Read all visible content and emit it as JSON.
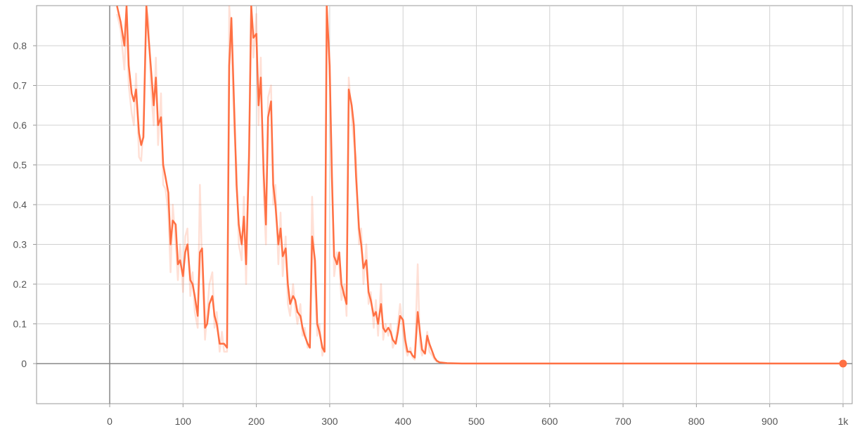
{
  "chart_data": {
    "type": "line",
    "title": "",
    "xlabel": "",
    "ylabel": "",
    "xlim": [
      -100,
      1020
    ],
    "ylim": [
      -0.1,
      0.9
    ],
    "grid": true,
    "x_ticks": [
      {
        "value": 0,
        "label": "0"
      },
      {
        "value": 100,
        "label": "100"
      },
      {
        "value": 200,
        "label": "200"
      },
      {
        "value": 300,
        "label": "300"
      },
      {
        "value": 400,
        "label": "400"
      },
      {
        "value": 500,
        "label": "500"
      },
      {
        "value": 600,
        "label": "600"
      },
      {
        "value": 700,
        "label": "700"
      },
      {
        "value": 800,
        "label": "800"
      },
      {
        "value": 900,
        "label": "900"
      },
      {
        "value": 1000,
        "label": "1k"
      }
    ],
    "y_ticks": [
      {
        "value": 0,
        "label": "0"
      },
      {
        "value": 0.1,
        "label": "0.1"
      },
      {
        "value": 0.2,
        "label": "0.2"
      },
      {
        "value": 0.3,
        "label": "0.3"
      },
      {
        "value": 0.4,
        "label": "0.4"
      },
      {
        "value": 0.5,
        "label": "0.5"
      },
      {
        "value": 0.6,
        "label": "0.6"
      },
      {
        "value": 0.7,
        "label": "0.7"
      },
      {
        "value": 0.8,
        "label": "0.8"
      }
    ],
    "colors": {
      "smoothed": "#ff7043",
      "raw": "#ff7043",
      "grid": "#d0d0d0",
      "axis": "#888888"
    },
    "series": [
      {
        "role": "smoothed",
        "x": [
          10,
          15,
          20,
          23,
          26,
          30,
          33,
          36,
          40,
          43,
          46,
          50,
          53,
          56,
          60,
          63,
          66,
          70,
          73,
          76,
          80,
          83,
          86,
          90,
          93,
          96,
          100,
          103,
          106,
          110,
          113,
          116,
          120,
          123,
          126,
          130,
          133,
          136,
          140,
          143,
          146,
          150,
          153,
          156,
          160,
          163,
          166,
          170,
          173,
          176,
          180,
          183,
          186,
          190,
          193,
          196,
          200,
          203,
          206,
          210,
          213,
          216,
          220,
          223,
          226,
          230,
          233,
          236,
          240,
          243,
          246,
          250,
          253,
          256,
          260,
          263,
          266,
          270,
          273,
          276,
          280,
          283,
          286,
          290,
          293,
          296,
          300,
          303,
          306,
          310,
          313,
          316,
          320,
          323,
          326,
          330,
          333,
          336,
          340,
          343,
          346,
          350,
          353,
          356,
          360,
          363,
          366,
          370,
          373,
          376,
          380,
          383,
          386,
          390,
          393,
          396,
          400,
          403,
          406,
          410,
          413,
          416,
          420,
          423,
          426,
          430,
          433,
          436,
          440,
          443,
          446,
          450,
          460,
          480,
          500,
          520,
          600,
          700,
          800,
          900,
          1000
        ],
        "y": [
          0.9,
          0.86,
          0.8,
          0.9,
          0.75,
          0.68,
          0.66,
          0.69,
          0.58,
          0.55,
          0.57,
          0.9,
          0.82,
          0.75,
          0.65,
          0.72,
          0.6,
          0.62,
          0.5,
          0.47,
          0.43,
          0.3,
          0.36,
          0.35,
          0.25,
          0.26,
          0.22,
          0.28,
          0.3,
          0.21,
          0.2,
          0.17,
          0.12,
          0.28,
          0.29,
          0.09,
          0.1,
          0.15,
          0.17,
          0.12,
          0.1,
          0.05,
          0.05,
          0.05,
          0.04,
          0.75,
          0.87,
          0.63,
          0.45,
          0.35,
          0.3,
          0.37,
          0.25,
          0.52,
          0.9,
          0.82,
          0.83,
          0.65,
          0.72,
          0.48,
          0.35,
          0.62,
          0.66,
          0.45,
          0.4,
          0.3,
          0.34,
          0.27,
          0.29,
          0.2,
          0.15,
          0.17,
          0.16,
          0.13,
          0.12,
          0.09,
          0.07,
          0.05,
          0.04,
          0.32,
          0.26,
          0.1,
          0.08,
          0.04,
          0.03,
          0.9,
          0.75,
          0.47,
          0.27,
          0.25,
          0.28,
          0.2,
          0.17,
          0.15,
          0.69,
          0.65,
          0.6,
          0.47,
          0.34,
          0.3,
          0.24,
          0.26,
          0.18,
          0.16,
          0.12,
          0.13,
          0.1,
          0.15,
          0.09,
          0.08,
          0.09,
          0.08,
          0.06,
          0.05,
          0.08,
          0.12,
          0.11,
          0.06,
          0.03,
          0.03,
          0.02,
          0.015,
          0.13,
          0.08,
          0.035,
          0.025,
          0.07,
          0.05,
          0.03,
          0.015,
          0.007,
          0.003,
          0.001,
          0.0002,
          0.0001,
          0.0001,
          0.0001,
          0.0001,
          0.0001,
          0.0001,
          0.0001
        ]
      },
      {
        "role": "raw",
        "x": [
          10,
          15,
          20,
          23,
          26,
          30,
          33,
          36,
          40,
          43,
          46,
          50,
          53,
          56,
          60,
          63,
          66,
          70,
          73,
          76,
          80,
          83,
          86,
          90,
          93,
          96,
          100,
          103,
          106,
          110,
          113,
          116,
          120,
          123,
          126,
          130,
          133,
          136,
          140,
          143,
          146,
          150,
          153,
          156,
          160,
          163,
          166,
          170,
          173,
          176,
          180,
          183,
          186,
          190,
          193,
          196,
          200,
          203,
          206,
          210,
          213,
          216,
          220,
          223,
          226,
          230,
          233,
          236,
          240,
          243,
          246,
          250,
          253,
          256,
          260,
          263,
          266,
          270,
          273,
          276,
          280,
          283,
          286,
          290,
          293,
          296,
          300,
          303,
          306,
          310,
          313,
          316,
          320,
          323,
          326,
          330,
          333,
          336,
          340,
          343,
          346,
          350,
          353,
          356,
          360,
          363,
          366,
          370,
          373,
          376,
          380,
          383,
          386,
          390,
          393,
          396,
          400,
          403,
          406,
          410,
          413,
          416,
          420,
          423,
          426,
          430,
          433,
          436,
          440,
          443,
          446,
          450
        ],
        "y": [
          0.88,
          0.84,
          0.74,
          0.86,
          0.7,
          0.63,
          0.6,
          0.73,
          0.52,
          0.51,
          0.6,
          0.9,
          0.86,
          0.7,
          0.6,
          0.77,
          0.55,
          0.68,
          0.45,
          0.44,
          0.38,
          0.23,
          0.4,
          0.3,
          0.21,
          0.3,
          0.18,
          0.32,
          0.34,
          0.17,
          0.23,
          0.13,
          0.09,
          0.45,
          0.25,
          0.06,
          0.13,
          0.2,
          0.23,
          0.09,
          0.13,
          0.03,
          0.08,
          0.03,
          0.03,
          0.9,
          0.82,
          0.58,
          0.5,
          0.3,
          0.26,
          0.42,
          0.2,
          0.57,
          0.9,
          0.77,
          0.88,
          0.6,
          0.77,
          0.43,
          0.3,
          0.67,
          0.7,
          0.4,
          0.45,
          0.25,
          0.38,
          0.22,
          0.32,
          0.15,
          0.12,
          0.2,
          0.14,
          0.1,
          0.15,
          0.07,
          0.09,
          0.04,
          0.05,
          0.42,
          0.2,
          0.07,
          0.1,
          0.02,
          0.05,
          0.9,
          0.7,
          0.52,
          0.22,
          0.28,
          0.25,
          0.16,
          0.2,
          0.12,
          0.72,
          0.62,
          0.56,
          0.52,
          0.3,
          0.34,
          0.2,
          0.3,
          0.15,
          0.18,
          0.09,
          0.16,
          0.07,
          0.2,
          0.06,
          0.1,
          0.07,
          0.1,
          0.04,
          0.06,
          0.1,
          0.15,
          0.08,
          0.04,
          0.02,
          0.04,
          0.015,
          0.01,
          0.25,
          0.05,
          0.02,
          0.04,
          0.08,
          0.03,
          0.02,
          0.01,
          0.005,
          0.002
        ]
      }
    ],
    "last_point": {
      "x": 1000,
      "y": 0
    }
  }
}
